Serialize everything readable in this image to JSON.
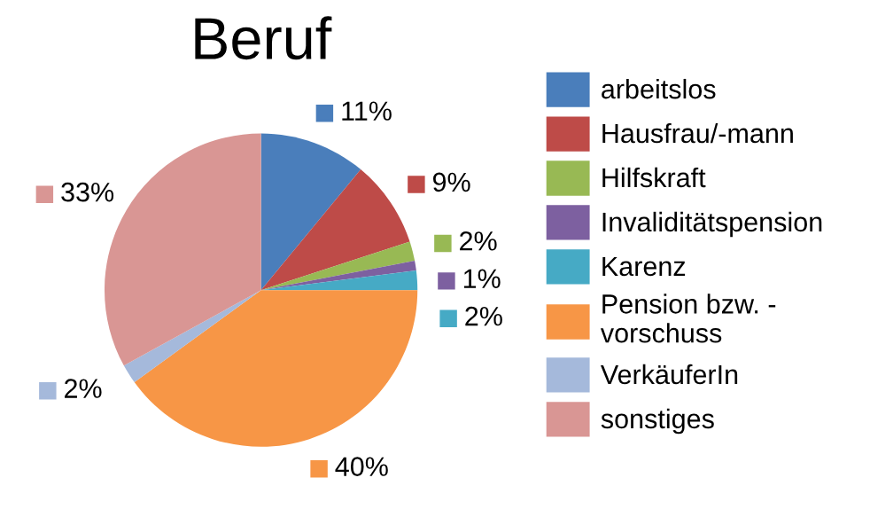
{
  "chart_data": {
    "type": "pie",
    "title": "Beruf",
    "categories": [
      "arbeitslos",
      "Hausfrau/-mann",
      "Hilfskraft",
      "Invaliditätspension",
      "Karenz",
      "Pension bzw. -\nvorschuss",
      "VerkäuferIn",
      "sonstiges"
    ],
    "values": [
      11,
      9,
      2,
      1,
      2,
      40,
      2,
      33
    ],
    "value_labels": [
      "11%",
      "9%",
      "2%",
      "1%",
      "2%",
      "40%",
      "2%",
      "33%"
    ],
    "colors": [
      "#4a7ebb",
      "#be4b48",
      "#98b954",
      "#7d60a0",
      "#46aac5",
      "#f79646",
      "#a5b9db",
      "#d99694"
    ],
    "legend": "right"
  }
}
